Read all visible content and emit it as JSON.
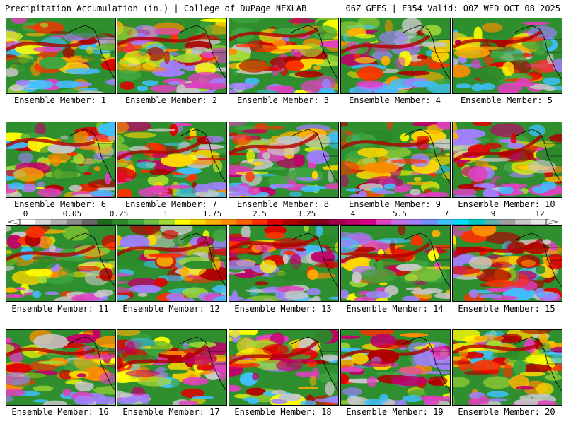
{
  "header": {
    "title": "Precipitation Accumulation (in.) | College of DuPage NEXLAB",
    "run_info": "06Z GEFS | F354 Valid: 00Z WED OCT 08 2025"
  },
  "colorbar": {
    "labels": [
      "0",
      "0.05",
      "0.25",
      "1",
      "1.75",
      "2.5",
      "3.25",
      "4",
      "5.5",
      "7",
      "9",
      "12"
    ],
    "colors": [
      "#ffffff",
      "#d9d9d9",
      "#b3b3b3",
      "#8c8c8c",
      "#666666",
      "#1b6b1b",
      "#2a8a2a",
      "#3fa63f",
      "#6cc04a",
      "#a4d835",
      "#ffff00",
      "#ffd700",
      "#ffb000",
      "#ff8c00",
      "#ff6000",
      "#ff3000",
      "#e00000",
      "#b00000",
      "#900000",
      "#800020",
      "#a0004a",
      "#c0006a",
      "#d4008c",
      "#e040c0",
      "#c070e0",
      "#a080ff",
      "#7090ff",
      "#40c0ff",
      "#00e0ff",
      "#00c8c8",
      "#60b0b0",
      "#a0a0a0",
      "#c8c8c8",
      "#e8e8e8"
    ]
  },
  "members": [
    {
      "label": "Ensemble Member: 1"
    },
    {
      "label": "Ensemble Member: 2"
    },
    {
      "label": "Ensemble Member: 3"
    },
    {
      "label": "Ensemble Member: 4"
    },
    {
      "label": "Ensemble Member: 5"
    },
    {
      "label": "Ensemble Member: 6"
    },
    {
      "label": "Ensemble Member: 7"
    },
    {
      "label": "Ensemble Member: 8"
    },
    {
      "label": "Ensemble Member: 9"
    },
    {
      "label": "Ensemble Member: 10"
    },
    {
      "label": "Ensemble Member: 11"
    },
    {
      "label": "Ensemble Member: 12"
    },
    {
      "label": "Ensemble Member: 13"
    },
    {
      "label": "Ensemble Member: 14"
    },
    {
      "label": "Ensemble Member: 15"
    },
    {
      "label": "Ensemble Member: 16"
    },
    {
      "label": "Ensemble Member: 17"
    },
    {
      "label": "Ensemble Member: 18"
    },
    {
      "label": "Ensemble Member: 19"
    },
    {
      "label": "Ensemble Member: 20"
    }
  ]
}
